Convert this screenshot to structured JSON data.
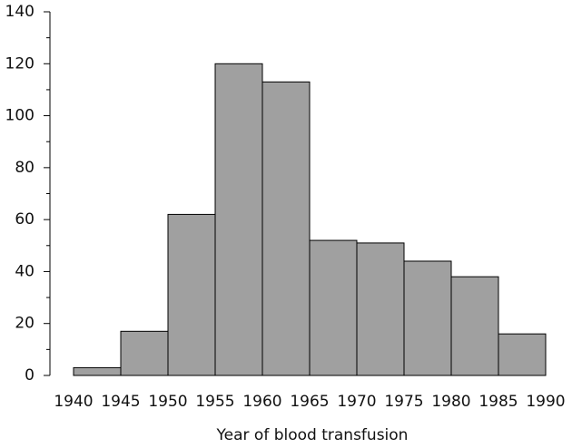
{
  "chart_data": {
    "type": "histogram",
    "x_label": "Year of blood transfusion",
    "bins": [
      1940,
      1945,
      1950,
      1955,
      1960,
      1965,
      1970,
      1975,
      1980,
      1985,
      1990
    ],
    "values": [
      3,
      17,
      62,
      120,
      113,
      52,
      51,
      44,
      38,
      16
    ],
    "color": "#a0a0a0",
    "xlim": [
      1937.5,
      1990
    ],
    "xticks": [
      1940,
      1945,
      1950,
      1955,
      1960,
      1965,
      1970,
      1975,
      1980,
      1985,
      1990
    ],
    "ylim": [
      0,
      140
    ],
    "yticks": [
      0,
      20,
      40,
      60,
      80,
      100,
      120,
      140
    ],
    "yminorticks": [
      10,
      30,
      50,
      70,
      90,
      110,
      130
    ],
    "grid": false
  }
}
